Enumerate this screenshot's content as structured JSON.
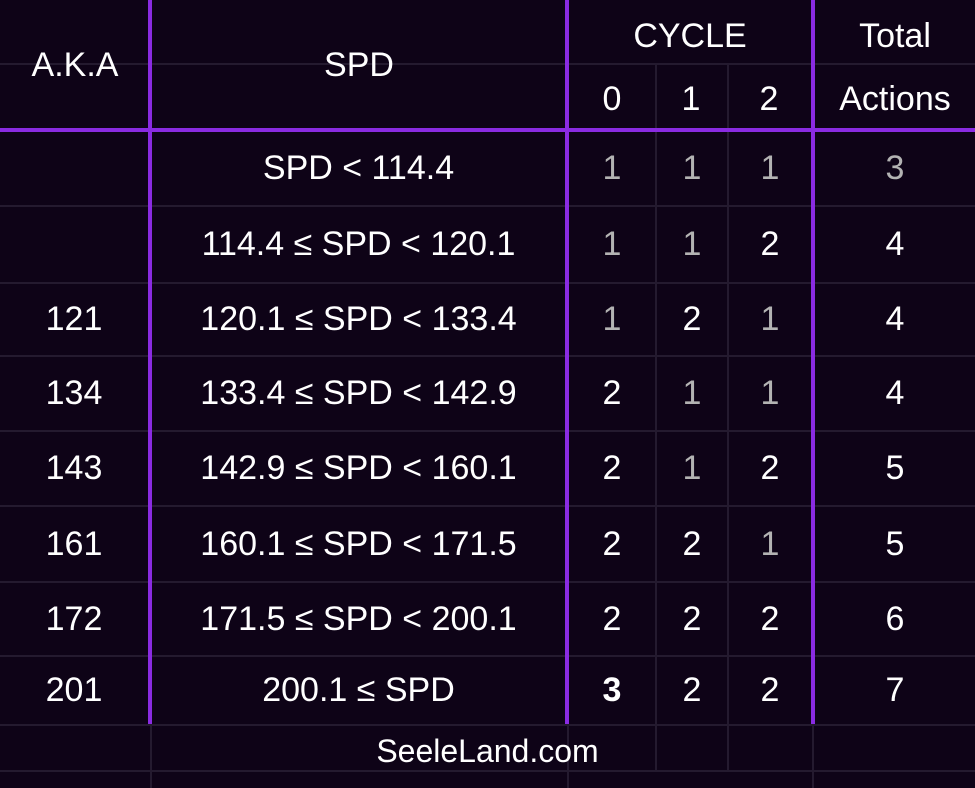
{
  "header": {
    "aka": "A.K.A",
    "spd": "SPD",
    "cycle": "CYCLE",
    "cycle_cols": [
      "0",
      "1",
      "2"
    ],
    "total_line1": "Total",
    "total_line2": "Actions"
  },
  "rows": [
    {
      "aka": "",
      "spd": "SPD < 114.4",
      "c0": "1",
      "c1": "1",
      "c2": "1",
      "total": "3",
      "c0_dim": true,
      "c1_dim": true,
      "c2_dim": true,
      "total_dim": true
    },
    {
      "aka": "",
      "spd": "114.4 ≤ SPD < 120.1",
      "c0": "1",
      "c1": "1",
      "c2": "2",
      "total": "4",
      "c0_dim": true,
      "c1_dim": true,
      "c2_dim": false,
      "total_dim": false
    },
    {
      "aka": "121",
      "spd": "120.1 ≤ SPD < 133.4",
      "c0": "1",
      "c1": "2",
      "c2": "1",
      "total": "4",
      "c0_dim": true,
      "c1_dim": false,
      "c2_dim": true,
      "total_dim": false
    },
    {
      "aka": "134",
      "spd": "133.4 ≤ SPD < 142.9",
      "c0": "2",
      "c1": "1",
      "c2": "1",
      "total": "4",
      "c0_dim": false,
      "c1_dim": true,
      "c2_dim": true,
      "total_dim": false
    },
    {
      "aka": "143",
      "spd": "142.9 ≤ SPD < 160.1",
      "c0": "2",
      "c1": "1",
      "c2": "2",
      "total": "5",
      "c0_dim": false,
      "c1_dim": true,
      "c2_dim": false,
      "total_dim": false
    },
    {
      "aka": "161",
      "spd": "160.1 ≤ SPD < 171.5",
      "c0": "2",
      "c1": "2",
      "c2": "1",
      "total": "5",
      "c0_dim": false,
      "c1_dim": false,
      "c2_dim": true,
      "total_dim": false
    },
    {
      "aka": "172",
      "spd": "171.5 ≤ SPD < 200.1",
      "c0": "2",
      "c1": "2",
      "c2": "2",
      "total": "6",
      "c0_dim": false,
      "c1_dim": false,
      "c2_dim": false,
      "total_dim": false
    },
    {
      "aka": "201",
      "spd": "200.1 ≤ SPD",
      "c0": "3",
      "c1": "2",
      "c2": "2",
      "total": "7",
      "c0_dim": false,
      "c1_dim": false,
      "c2_dim": false,
      "total_dim": false,
      "c0_bold": true
    }
  ],
  "footer": {
    "text": "SeeleLand.com"
  },
  "colors": {
    "background": "#0e0317",
    "accent_purple": "#8a2be2",
    "text_bright": "#ffffff",
    "text_dim": "#b3b3b3"
  }
}
